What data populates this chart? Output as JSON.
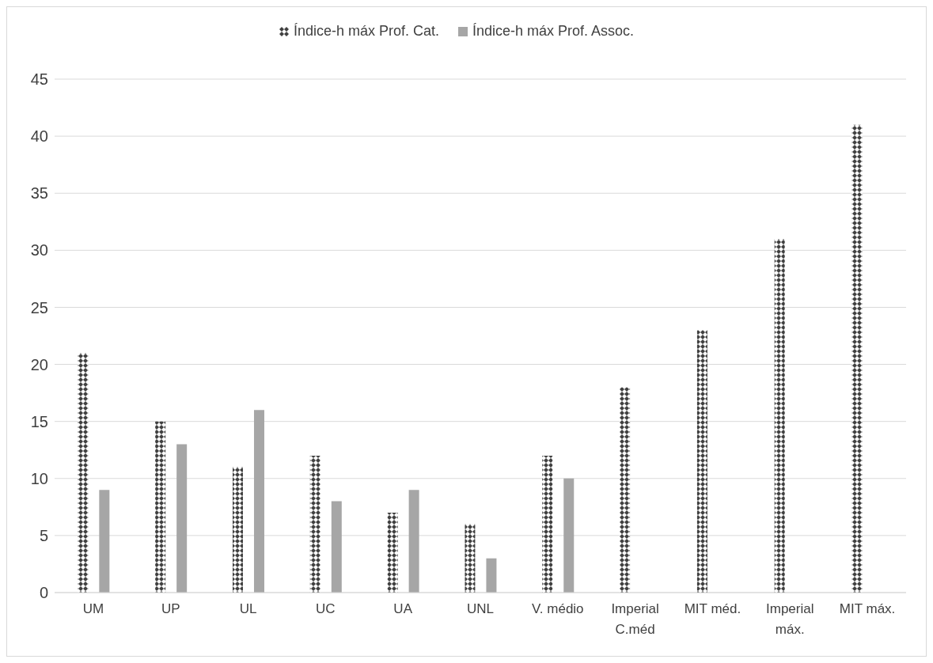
{
  "chart_data": {
    "type": "bar",
    "categories": [
      "UM",
      "UP",
      "UL",
      "UC",
      "UA",
      "UNL",
      "V. médio",
      "Imperial C.méd",
      "MIT méd.",
      "Imperial máx.",
      "MIT máx."
    ],
    "series": [
      {
        "name": "Índice-h máx Prof. Cat.",
        "color": "#404040",
        "values": [
          21,
          15,
          11,
          12,
          7,
          6,
          12,
          18,
          23,
          31,
          41
        ]
      },
      {
        "name": "Índice-h máx Prof. Assoc.",
        "color": "#a6a6a6",
        "values": [
          9,
          13,
          16,
          8,
          9,
          3,
          10,
          null,
          null,
          null,
          null
        ]
      }
    ],
    "ylim": [
      0,
      45
    ],
    "yticks": [
      0,
      5,
      10,
      15,
      20,
      25,
      30,
      35,
      40,
      45
    ],
    "grid": "y",
    "legend": "top"
  }
}
